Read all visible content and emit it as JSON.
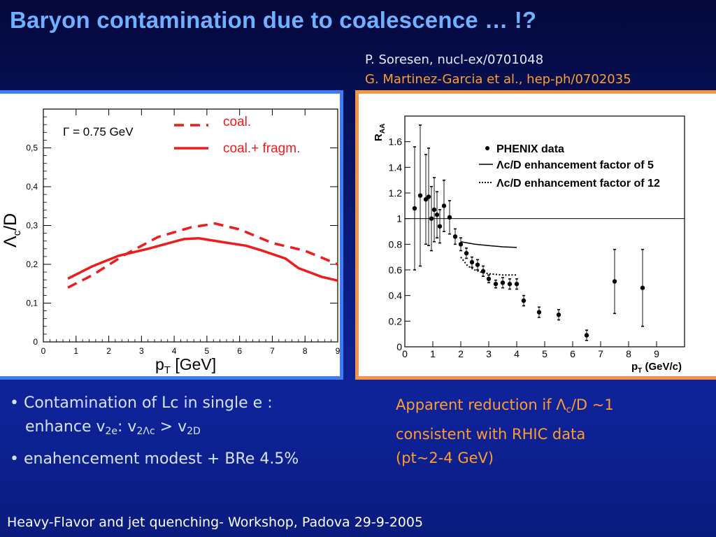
{
  "title": "Baryon contamination due to coalescence … !?",
  "refs": {
    "line1": "P. Soresen, nucl-ex/0701048",
    "line2": "G. Martinez-Garcia et al., hep-ph/0702035"
  },
  "bullets": {
    "b1_line1": "• Contamination of Lc in single e :",
    "b1_line2_pre": "enhance v",
    "sub_2e": "2e",
    "colon": ": v",
    "sub_2lc": "2Λc",
    "gt": " > v",
    "sub_2d": "2D",
    "b2": "• enahencement modest + BRe 4.5%"
  },
  "note": {
    "pre": "Apparent reduction  if Λ",
    "sub_c": "c",
    "post": "/D ~1",
    "line2": "consistent with RHIC data",
    "line3": "(pt~2-4 GeV)"
  },
  "footer": "Heavy-Flavor and jet quenching- Workshop, Padova 29-9-2005",
  "colors": {
    "title": "#6fb0ff",
    "ref_accent": "#ff9d2e",
    "left_frame": "#3f7bf2",
    "right_frame": "#f49545",
    "curve": "#ee1c1c"
  },
  "chart_data": [
    {
      "type": "line",
      "xlabel": "p_T [GeV]",
      "ylabel": "Λc/D",
      "annotation": "Γ = 0.75 GeV",
      "xlim": [
        0,
        9
      ],
      "ylim": [
        0,
        0.6
      ],
      "x_ticks": [
        0,
        1,
        2,
        3,
        4,
        5,
        6,
        7,
        8,
        9
      ],
      "y_ticks": [
        0,
        0.1,
        0.2,
        0.3,
        0.4,
        0.5
      ],
      "x_tick_labels": [
        "0",
        "1",
        "2",
        "3",
        "4",
        "5",
        "6",
        "7",
        "8",
        "9"
      ],
      "y_tick_labels": [
        "0",
        "0,1",
        "0,2",
        "0,3",
        "0,4",
        "0,5"
      ],
      "legend": {
        "position": "top-right",
        "entries": [
          "coal.",
          "coal.+ fragm."
        ]
      },
      "series": [
        {
          "name": "coal.",
          "style": "dashed",
          "points": [
            [
              0.75,
              0.14
            ],
            [
              1.5,
              0.172
            ],
            [
              2.5,
              0.225
            ],
            [
              3.5,
              0.27
            ],
            [
              4.5,
              0.295
            ],
            [
              5.25,
              0.305
            ],
            [
              6,
              0.29
            ],
            [
              7,
              0.255
            ],
            [
              8,
              0.235
            ],
            [
              9,
              0.2
            ]
          ]
        },
        {
          "name": "coal.+ fragm.",
          "style": "solid",
          "points": [
            [
              0.75,
              0.163
            ],
            [
              1.5,
              0.195
            ],
            [
              2.3,
              0.222
            ],
            [
              3.2,
              0.24
            ],
            [
              4.3,
              0.265
            ],
            [
              4.75,
              0.267
            ],
            [
              5.5,
              0.257
            ],
            [
              6.2,
              0.248
            ],
            [
              6.7,
              0.235
            ],
            [
              7.4,
              0.215
            ],
            [
              7.8,
              0.19
            ],
            [
              8.5,
              0.168
            ],
            [
              9,
              0.158
            ]
          ]
        }
      ]
    },
    {
      "type": "scatter",
      "xlabel": "pT (GeV/c)",
      "ylabel": "RAA",
      "xlim": [
        0,
        10
      ],
      "ylim": [
        0,
        1.8
      ],
      "x_ticks": [
        0,
        1,
        2,
        3,
        4,
        5,
        6,
        7,
        8,
        9
      ],
      "y_ticks": [
        0,
        0.2,
        0.4,
        0.6,
        0.8,
        1,
        1.2,
        1.4,
        1.6
      ],
      "x_tick_labels": [
        "0",
        "1",
        "2",
        "3",
        "4",
        "5",
        "6",
        "7",
        "8",
        "9"
      ],
      "y_tick_labels": [
        "0",
        "0.2",
        "0.4",
        "0.6",
        "0.8",
        "1",
        "1.2",
        "1.4",
        "1.6"
      ],
      "reference_line_y": 1,
      "legend": {
        "position": "top-right",
        "entries": [
          "PHENIX data",
          "Λc/D enhancement factor of 5",
          "Λc/D enhancement factor of 12"
        ]
      },
      "series": [
        {
          "name": "PHENIX data",
          "points": [
            {
              "x": 0.35,
              "y": 1.08,
              "err": 0.48
            },
            {
              "x": 0.55,
              "y": 1.18,
              "err": 0.55
            },
            {
              "x": 0.75,
              "y": 1.15,
              "err": 0.35
            },
            {
              "x": 0.85,
              "y": 1.17,
              "err": 0.38
            },
            {
              "x": 0.95,
              "y": 1.0,
              "err": 0.25
            },
            {
              "x": 1.05,
              "y": 1.07,
              "err": 0.25
            },
            {
              "x": 1.15,
              "y": 1.03,
              "err": 0.18
            },
            {
              "x": 1.25,
              "y": 0.94,
              "err": 0.13
            },
            {
              "x": 1.4,
              "y": 1.1,
              "err": 0.2
            },
            {
              "x": 1.6,
              "y": 1.01,
              "err": 0.13
            },
            {
              "x": 1.8,
              "y": 0.86,
              "err": 0.06
            },
            {
              "x": 2.0,
              "y": 0.8,
              "err": 0.05
            },
            {
              "x": 2.2,
              "y": 0.73,
              "err": 0.04
            },
            {
              "x": 2.4,
              "y": 0.66,
              "err": 0.04
            },
            {
              "x": 2.6,
              "y": 0.64,
              "err": 0.04
            },
            {
              "x": 2.8,
              "y": 0.59,
              "err": 0.04
            },
            {
              "x": 3.0,
              "y": 0.53,
              "err": 0.03
            },
            {
              "x": 3.25,
              "y": 0.49,
              "err": 0.03
            },
            {
              "x": 3.5,
              "y": 0.5,
              "err": 0.04
            },
            {
              "x": 3.75,
              "y": 0.49,
              "err": 0.04
            },
            {
              "x": 4.0,
              "y": 0.49,
              "err": 0.04
            },
            {
              "x": 4.25,
              "y": 0.36,
              "err": 0.04
            },
            {
              "x": 4.8,
              "y": 0.27,
              "err": 0.04
            },
            {
              "x": 5.5,
              "y": 0.25,
              "err": 0.04
            },
            {
              "x": 6.5,
              "y": 0.09,
              "err": 0.04
            },
            {
              "x": 7.5,
              "y": 0.51,
              "err": 0.25
            },
            {
              "x": 8.5,
              "y": 0.46,
              "err": 0.3
            }
          ]
        },
        {
          "name": "Λc/D enhancement factor of 5",
          "style": "solid",
          "points": [
            [
              2.0,
              0.82
            ],
            [
              2.5,
              0.8
            ],
            [
              3.0,
              0.79
            ],
            [
              3.5,
              0.78
            ],
            [
              4.0,
              0.775
            ]
          ]
        },
        {
          "name": "Λc/D enhancement factor of 12",
          "style": "dotted",
          "points": [
            [
              2.0,
              0.7
            ],
            [
              2.25,
              0.63
            ],
            [
              2.5,
              0.6
            ],
            [
              2.75,
              0.58
            ],
            [
              3.0,
              0.57
            ],
            [
              3.25,
              0.565
            ],
            [
              3.5,
              0.56
            ],
            [
              4.0,
              0.56
            ]
          ]
        }
      ]
    }
  ]
}
